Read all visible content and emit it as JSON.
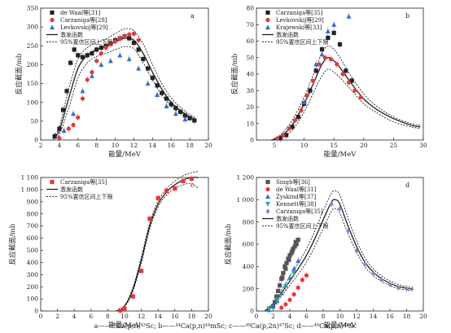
{
  "caption": "a——⁴³Ca(p,n)⁴³Sc; b——⁴⁴Ca(p,n)⁴⁴mSc; c——⁴⁸Ca(p,2n)⁴⁷Sc; d——⁴⁸Ca(p,n)⁴⁸Sc",
  "colors": {
    "black": "#222222",
    "red": "#e0393e",
    "blue": "#3a6fc4",
    "teal": "#2aa6a0",
    "grey": "#555555",
    "purple": "#9a7cc2"
  },
  "chart_data": [
    {
      "id": "a",
      "type": "scatter",
      "label": "a",
      "xlabel": "能量/MeV",
      "ylabel": "反应截面/mb",
      "xlim": [
        2,
        20
      ],
      "ylim": [
        0,
        350
      ],
      "xticks": [
        2,
        4,
        6,
        8,
        10,
        12,
        14,
        16,
        18,
        20
      ],
      "yticks": [
        0,
        50,
        100,
        150,
        200,
        250,
        300,
        350
      ],
      "legend_position": "top-left",
      "series": [
        {
          "name": "de Waal等[31]",
          "marker": "square",
          "color": "#222222",
          "x": [
            3.5,
            4.0,
            4.4,
            4.8,
            5.2,
            5.6,
            6.0,
            6.5,
            7.0,
            7.5,
            8.0,
            8.5,
            9.0,
            9.5,
            10.0,
            10.5,
            11.0,
            11.5,
            12.0,
            12.5,
            13.0,
            13.5,
            14.0,
            14.5,
            15.0,
            15.5,
            16.0,
            16.5,
            17.0,
            17.5,
            18.0,
            18.5
          ],
          "y": [
            10,
            30,
            80,
            130,
            205,
            240,
            225,
            220,
            225,
            230,
            240,
            245,
            250,
            255,
            265,
            270,
            275,
            270,
            258,
            240,
            215,
            190,
            165,
            145,
            125,
            110,
            95,
            85,
            75,
            65,
            58,
            52
          ]
        },
        {
          "name": "Carzaniga等[28]",
          "marker": "circle",
          "color": "#e0393e",
          "x": [
            4.0,
            5.0,
            5.5,
            6.0,
            6.5,
            7.0,
            7.5,
            8.0,
            8.5,
            9.0,
            9.5,
            10.0,
            10.5,
            11.0,
            11.5,
            12.0,
            12.5
          ],
          "y": [
            5,
            30,
            40,
            60,
            110,
            160,
            180,
            210,
            230,
            245,
            255,
            262,
            270,
            275,
            280,
            282,
            265
          ]
        },
        {
          "name": "Levkovskij等[29]",
          "marker": "triangle",
          "color": "#3a6fc4",
          "x": [
            4.5,
            5.5,
            6.5,
            7.5,
            8.5,
            9.5,
            10.5,
            11.5,
            12.5,
            13.5,
            14.5,
            15.5,
            16.5,
            17.5
          ],
          "y": [
            25,
            70,
            130,
            170,
            200,
            210,
            225,
            215,
            190,
            150,
            120,
            90,
            70,
            55
          ]
        }
      ],
      "fit": {
        "name": "激发函数",
        "x": [
          3.3,
          4,
          5,
          6,
          7,
          8,
          9,
          10,
          11,
          12,
          13,
          14,
          15,
          16,
          17,
          18,
          18.6
        ],
        "y": [
          5,
          25,
          110,
          190,
          225,
          240,
          248,
          260,
          270,
          265,
          230,
          180,
          135,
          100,
          78,
          62,
          55
        ]
      },
      "band": {
        "name": "95%置信区间上下限",
        "x": [
          3.3,
          4,
          5,
          6,
          7,
          8,
          9,
          10,
          11,
          12,
          13,
          14,
          15,
          16,
          17,
          18,
          18.6
        ],
        "upper": [
          10,
          35,
          135,
          215,
          245,
          258,
          268,
          282,
          295,
          290,
          255,
          200,
          150,
          112,
          87,
          68,
          60
        ],
        "lower": [
          2,
          15,
          85,
          165,
          205,
          222,
          230,
          240,
          248,
          242,
          205,
          160,
          120,
          90,
          70,
          56,
          50
        ]
      }
    },
    {
      "id": "b",
      "type": "scatter",
      "label": "b",
      "xlabel": "能量/MeV",
      "ylabel": "反应截面/mb",
      "xlim": [
        2,
        30
      ],
      "ylim": [
        0,
        80
      ],
      "xticks": [
        5,
        10,
        15,
        20,
        25,
        30
      ],
      "yticks": [
        0,
        10,
        20,
        30,
        40,
        50,
        60,
        70,
        80
      ],
      "legend_position": "top-left",
      "series": [
        {
          "name": "Carzaniga等[35]",
          "marker": "square",
          "color": "#222222",
          "x": [
            6,
            7,
            8,
            9,
            10,
            11,
            12,
            13,
            14,
            15,
            16,
            17,
            18
          ],
          "y": [
            1,
            3,
            8,
            14,
            22,
            30,
            42,
            55,
            62,
            65,
            58,
            42,
            36
          ]
        },
        {
          "name": "Levkovskij等[29]",
          "marker": "circle",
          "color": "#e0393e",
          "x": [
            5.5,
            6.5,
            7.5,
            8.5,
            9.5,
            10.5,
            11.5,
            12.5,
            13.5,
            14.5,
            15.5,
            16.5,
            17.5,
            18.5,
            19.5
          ],
          "y": [
            1,
            3,
            7,
            12,
            18,
            27,
            36,
            46,
            50,
            49,
            46,
            40,
            35,
            30,
            26
          ]
        },
        {
          "name": "Krajewski等[33]",
          "marker": "triangle",
          "color": "#3a6fc4",
          "x": [
            10,
            12,
            13,
            14,
            15,
            17.5
          ],
          "y": [
            23,
            46,
            52,
            66,
            70,
            75
          ]
        }
      ],
      "fit": {
        "name": "激发函数",
        "x": [
          4.5,
          6,
          8,
          10,
          12,
          13,
          14,
          15,
          16,
          18,
          20,
          22,
          25,
          28,
          29.5
        ],
        "y": [
          0,
          2,
          9,
          22,
          38,
          46,
          50,
          48,
          44,
          34,
          25,
          19,
          13,
          9,
          8
        ]
      },
      "band": {
        "name": "95%置信区间上下限",
        "x": [
          4.5,
          6,
          8,
          10,
          12,
          13,
          14,
          15,
          16,
          18,
          20,
          22,
          25,
          28,
          29.5
        ],
        "upper": [
          0,
          3,
          12,
          26,
          44,
          53,
          57,
          55,
          50,
          38,
          28,
          21,
          14,
          10,
          9
        ],
        "lower": [
          0,
          1,
          6,
          17,
          32,
          39,
          43,
          41,
          38,
          30,
          22,
          17,
          11,
          8,
          7
        ]
      }
    },
    {
      "id": "c",
      "type": "scatter",
      "label": "c",
      "xlabel": "能量/MeV",
      "ylabel": "反应截面/mb",
      "xlim": [
        0,
        20
      ],
      "ylim": [
        0,
        1100
      ],
      "xticks": [
        0,
        2,
        4,
        6,
        8,
        10,
        12,
        14,
        16,
        18,
        20
      ],
      "yticks": [
        0,
        100,
        200,
        300,
        400,
        500,
        600,
        700,
        800,
        900,
        1000,
        1100
      ],
      "ytick_labels": [
        "0",
        "100",
        "200",
        "300",
        "400",
        "500",
        "600",
        "700",
        "800",
        "900",
        "1 000",
        "1 100"
      ],
      "legend_position": "top-left",
      "series": [
        {
          "name": "Carzaniga等[35]",
          "marker": "square",
          "color": "#e0393e",
          "x": [
            9.5,
            10.0,
            11.0,
            12.0,
            13.0,
            14.0,
            15.0,
            16.0,
            17.0,
            18.0
          ],
          "y": [
            5,
            20,
            120,
            330,
            760,
            930,
            990,
            1010,
            1070,
            1090
          ]
        }
      ],
      "fit": {
        "name": "激发函数",
        "x": [
          9,
          10,
          11,
          12,
          13,
          14,
          15,
          16,
          17,
          18,
          18.8
        ],
        "y": [
          0,
          40,
          180,
          420,
          700,
          880,
          980,
          1040,
          1080,
          1100,
          1100
        ]
      },
      "band": {
        "name": "95%置信区间上下限",
        "x": [
          9,
          10,
          11,
          12,
          13,
          14,
          15,
          16,
          17,
          18,
          18.8
        ],
        "upper": [
          0,
          45,
          195,
          445,
          725,
          905,
          1005,
          1070,
          1115,
          1140,
          1150
        ],
        "lower": [
          0,
          35,
          165,
          395,
          675,
          855,
          955,
          1010,
          1040,
          1050,
          1010
        ]
      }
    },
    {
      "id": "d",
      "type": "scatter",
      "label": "d",
      "xlabel": "能量/MeV",
      "ylabel": "反应截面/mb",
      "xlim": [
        0,
        20
      ],
      "ylim": [
        0,
        1200
      ],
      "xticks": [
        0,
        2,
        4,
        6,
        8,
        10,
        12,
        14,
        16,
        18,
        20
      ],
      "yticks": [
        0,
        200,
        400,
        600,
        800,
        1000,
        1200
      ],
      "ytick_labels": [
        "0",
        "200",
        "400",
        "600",
        "800",
        "1 000",
        "1 200"
      ],
      "legend_position": "top-left",
      "series": [
        {
          "name": "Singh等[36]",
          "marker": "square",
          "color": "#555555",
          "x": [
            2.0,
            2.2,
            2.4,
            2.6,
            2.8,
            3.0,
            3.2,
            3.4,
            3.6,
            3.8,
            4.0,
            4.2,
            4.4,
            4.6,
            4.8,
            5.0,
            3.1,
            3.5,
            3.9,
            4.3,
            4.7
          ],
          "y": [
            40,
            80,
            130,
            180,
            230,
            290,
            340,
            400,
            430,
            470,
            500,
            520,
            560,
            580,
            600,
            640,
            300,
            380,
            460,
            540,
            620
          ]
        },
        {
          "name": "de Waal等[31]",
          "marker": "circle",
          "color": "#e0393e",
          "x": [
            3.0,
            3.5,
            4.0,
            4.5,
            5.0,
            5.5,
            6.0
          ],
          "y": [
            30,
            60,
            100,
            150,
            210,
            280,
            320
          ]
        },
        {
          "name": "Zyskind等[37]",
          "marker": "triangle",
          "color": "#3a6fc4",
          "x": [
            1.5,
            2.0,
            2.5,
            3.0,
            3.5,
            4.0,
            4.5,
            5.0
          ],
          "y": [
            10,
            40,
            90,
            160,
            230,
            300,
            380,
            450
          ]
        },
        {
          "name": "Kennett等[38]",
          "marker": "triangle-down",
          "color": "#2aa6a0",
          "x": [
            1.5,
            2.5,
            3.5,
            4.5
          ],
          "y": [
            20,
            100,
            220,
            340
          ]
        },
        {
          "name": "Carzaniga等[35]",
          "marker": "diamond",
          "color": "#9a7cc2",
          "x": [
            9.0,
            10.0,
            11.0,
            12.0,
            13.0,
            14.0,
            15.0,
            16.0,
            17.0,
            18.0
          ],
          "y": [
            960,
            920,
            720,
            540,
            420,
            340,
            280,
            240,
            210,
            200
          ]
        }
      ],
      "fit": {
        "name": "激发函数",
        "x": [
          1,
          2,
          3,
          4,
          5,
          6,
          7,
          8,
          9,
          9.5,
          10,
          11,
          12,
          13,
          14,
          15,
          16,
          17,
          18,
          18.8
        ],
        "y": [
          0,
          60,
          160,
          270,
          380,
          500,
          650,
          820,
          980,
          1000,
          960,
          760,
          580,
          440,
          350,
          290,
          250,
          220,
          205,
          195
        ]
      },
      "band": {
        "name": "95%置信区间上下限",
        "x": [
          1,
          2,
          3,
          4,
          5,
          6,
          7,
          8,
          9,
          9.5,
          10,
          11,
          12,
          13,
          14,
          15,
          16,
          17,
          18,
          18.8
        ],
        "upper": [
          0,
          75,
          185,
          310,
          430,
          560,
          720,
          900,
          1060,
          1080,
          1040,
          830,
          630,
          480,
          380,
          315,
          270,
          238,
          220,
          210
        ],
        "lower": [
          0,
          45,
          135,
          230,
          330,
          440,
          580,
          740,
          900,
          920,
          880,
          690,
          530,
          400,
          320,
          265,
          230,
          202,
          190,
          180
        ]
      }
    }
  ]
}
